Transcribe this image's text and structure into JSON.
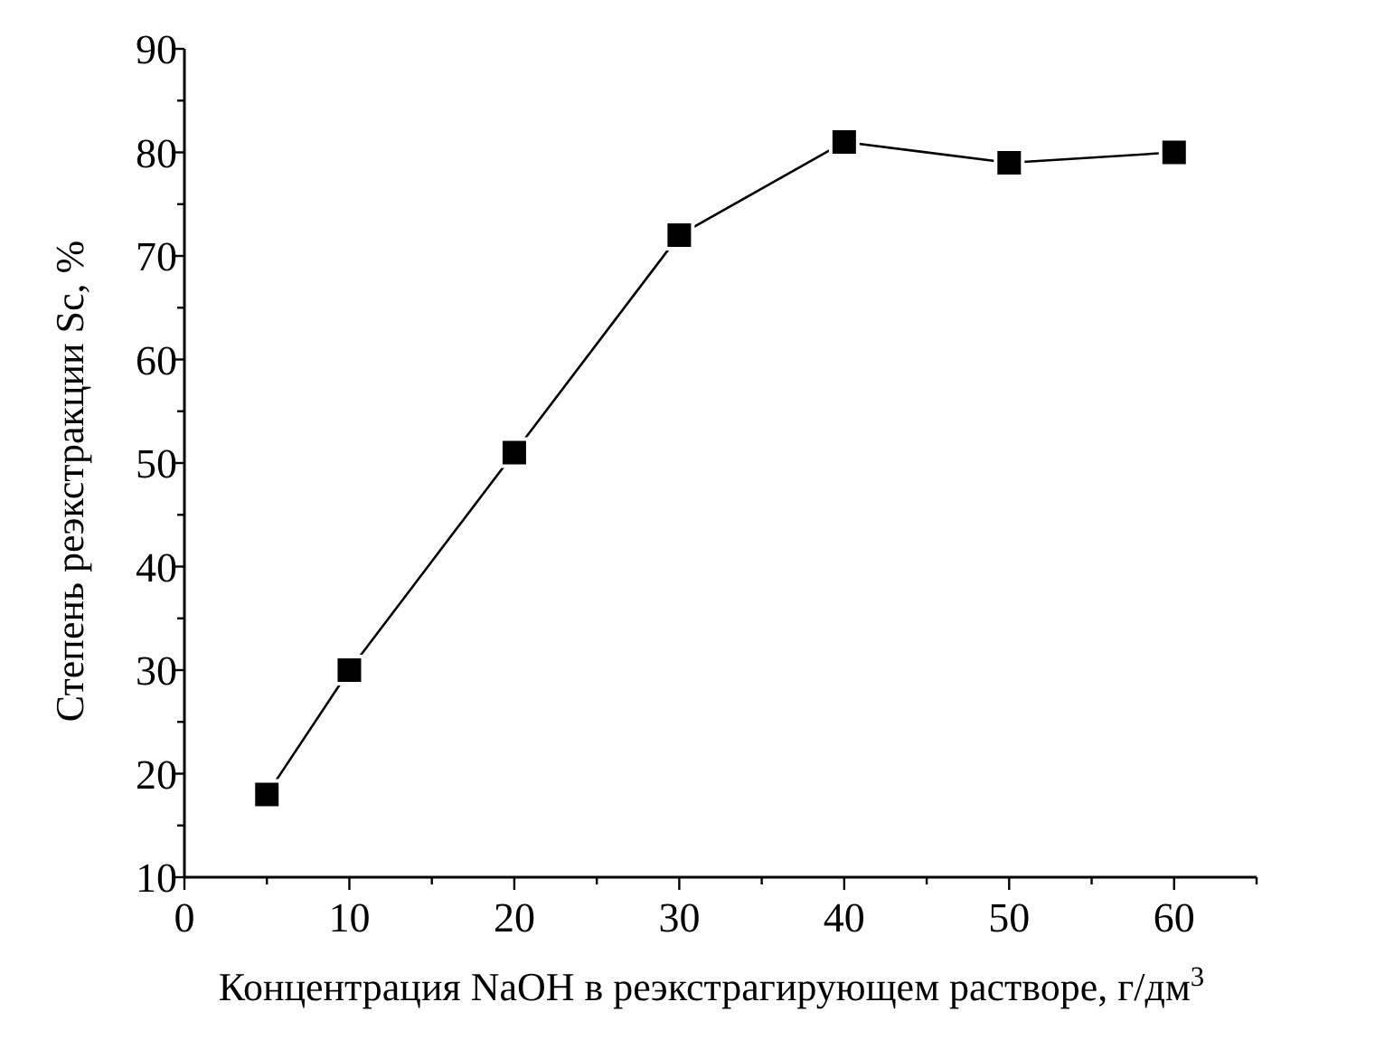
{
  "chart_data": {
    "type": "line",
    "xlabel": "Концентрация NaOH в реэкстрагирующем растворе, г/дм$^{3}$",
    "ylabel": "Степень реэкстракции Sc, %",
    "x": [
      5,
      10,
      20,
      30,
      40,
      50,
      60
    ],
    "series": [
      {
        "color": "#000000",
        "values": [
          18,
          30,
          51,
          72,
          81,
          79,
          80
        ]
      }
    ],
    "marker": "square",
    "line_style": "solid",
    "grid": false,
    "xlim": [
      0,
      65
    ],
    "xticks": [
      0,
      {
        "value": 5,
        "label": null
      },
      10,
      {
        "value": 15,
        "label": null
      },
      20,
      {
        "value": 25,
        "label": null
      },
      30,
      {
        "value": 35,
        "label": null
      },
      40,
      {
        "value": 45,
        "label": null
      },
      50,
      {
        "value": 55,
        "label": null
      },
      60,
      {
        "value": 65,
        "label": null
      }
    ],
    "ylim": [
      10,
      90
    ],
    "yticks": [
      10,
      {
        "value": 15,
        "label": null
      },
      20,
      {
        "value": 25,
        "label": null
      },
      30,
      {
        "value": 35,
        "label": null
      },
      40,
      {
        "value": 45,
        "label": null
      },
      50,
      {
        "value": 55,
        "label": null
      },
      60,
      {
        "value": 65,
        "label": null
      },
      70,
      {
        "value": 75,
        "label": null
      },
      80,
      {
        "value": 85,
        "label": null
      },
      90
    ]
  }
}
